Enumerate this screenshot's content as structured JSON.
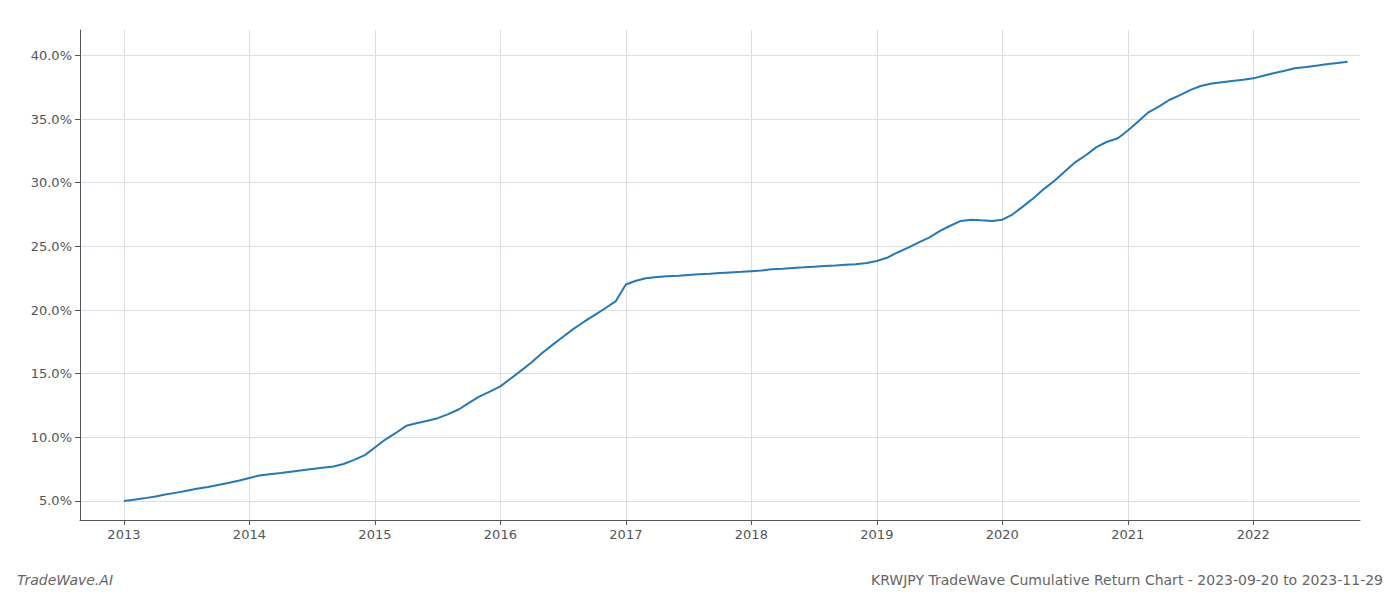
{
  "chart_data": {
    "type": "line",
    "title": "KRWJPY TradeWave Cumulative Return Chart - 2023-09-20 to 2023-11-29",
    "annotations": [
      "TradeWave.AI"
    ],
    "color": "#2878b4",
    "grid": true,
    "x": [
      2013.0,
      2013.08,
      2013.16,
      2013.25,
      2013.33,
      2013.42,
      2013.5,
      2013.58,
      2013.67,
      2013.75,
      2013.83,
      2013.92,
      2014.0,
      2014.08,
      2014.16,
      2014.25,
      2014.33,
      2014.42,
      2014.5,
      2014.58,
      2014.67,
      2014.75,
      2014.83,
      2014.92,
      2015.0,
      2015.08,
      2015.16,
      2015.25,
      2015.33,
      2015.42,
      2015.5,
      2015.58,
      2015.67,
      2015.75,
      2015.83,
      2015.92,
      2016.0,
      2016.08,
      2016.16,
      2016.25,
      2016.33,
      2016.42,
      2016.5,
      2016.58,
      2016.67,
      2016.75,
      2016.83,
      2016.92,
      2017.0,
      2017.08,
      2017.16,
      2017.25,
      2017.33,
      2017.42,
      2017.5,
      2017.58,
      2017.67,
      2017.75,
      2017.83,
      2017.92,
      2018.0,
      2018.08,
      2018.16,
      2018.25,
      2018.33,
      2018.42,
      2018.5,
      2018.58,
      2018.67,
      2018.75,
      2018.83,
      2018.92,
      2019.0,
      2019.08,
      2019.16,
      2019.25,
      2019.33,
      2019.42,
      2019.5,
      2019.58,
      2019.67,
      2019.75,
      2019.83,
      2019.92,
      2020.0,
      2020.08,
      2020.16,
      2020.25,
      2020.33,
      2020.42,
      2020.5,
      2020.58,
      2020.67,
      2020.75,
      2020.83,
      2020.92,
      2021.0,
      2021.08,
      2021.16,
      2021.25,
      2021.33,
      2021.42,
      2021.5,
      2021.58,
      2021.67,
      2021.75,
      2021.83,
      2021.92,
      2022.0,
      2022.08,
      2022.16,
      2022.25,
      2022.33,
      2022.42,
      2022.5,
      2022.58,
      2022.67,
      2022.75
    ],
    "values": [
      5.0,
      5.1,
      5.2,
      5.35,
      5.5,
      5.65,
      5.8,
      5.95,
      6.1,
      6.25,
      6.4,
      6.6,
      6.8,
      7.0,
      7.1,
      7.2,
      7.3,
      7.4,
      7.5,
      7.6,
      7.7,
      7.9,
      8.2,
      8.6,
      9.2,
      9.8,
      10.3,
      10.9,
      11.1,
      11.3,
      11.5,
      11.8,
      12.2,
      12.7,
      13.2,
      13.6,
      14.0,
      14.6,
      15.2,
      15.9,
      16.6,
      17.3,
      17.9,
      18.5,
      19.1,
      19.6,
      20.1,
      20.7,
      22.0,
      22.3,
      22.5,
      22.6,
      22.65,
      22.7,
      22.75,
      22.8,
      22.85,
      22.9,
      22.95,
      23.0,
      23.05,
      23.1,
      23.2,
      23.25,
      23.3,
      23.35,
      23.4,
      23.45,
      23.5,
      23.55,
      23.6,
      23.7,
      23.85,
      24.1,
      24.5,
      24.9,
      25.3,
      25.7,
      26.2,
      26.6,
      27.0,
      27.1,
      27.05,
      27.0,
      27.1,
      27.5,
      28.1,
      28.8,
      29.5,
      30.2,
      30.9,
      31.6,
      32.2,
      32.8,
      33.2,
      33.5,
      34.1,
      34.8,
      35.5,
      36.0,
      36.5,
      36.9,
      37.3,
      37.6,
      37.8,
      37.9,
      38.0,
      38.1,
      38.2,
      38.4,
      38.6,
      38.8,
      39.0,
      39.1,
      39.2,
      39.3,
      39.4,
      39.5
    ],
    "xlim": [
      2012.65,
      2022.85
    ],
    "xticks": [
      2013,
      2014,
      2015,
      2016,
      2017,
      2018,
      2019,
      2020,
      2021,
      2022
    ],
    "ylim": [
      3.5,
      42.0
    ],
    "yticks": [
      {
        "value": 5.0,
        "label": "5.0%"
      },
      {
        "value": 10.0,
        "label": "10.0%"
      },
      {
        "value": 15.0,
        "label": "15.0%"
      },
      {
        "value": 20.0,
        "label": "20.0%"
      },
      {
        "value": 25.0,
        "label": "25.0%"
      },
      {
        "value": 30.0,
        "label": "30.0%"
      },
      {
        "value": 35.0,
        "label": "35.0%"
      },
      {
        "value": 40.0,
        "label": "40.0%"
      }
    ]
  }
}
